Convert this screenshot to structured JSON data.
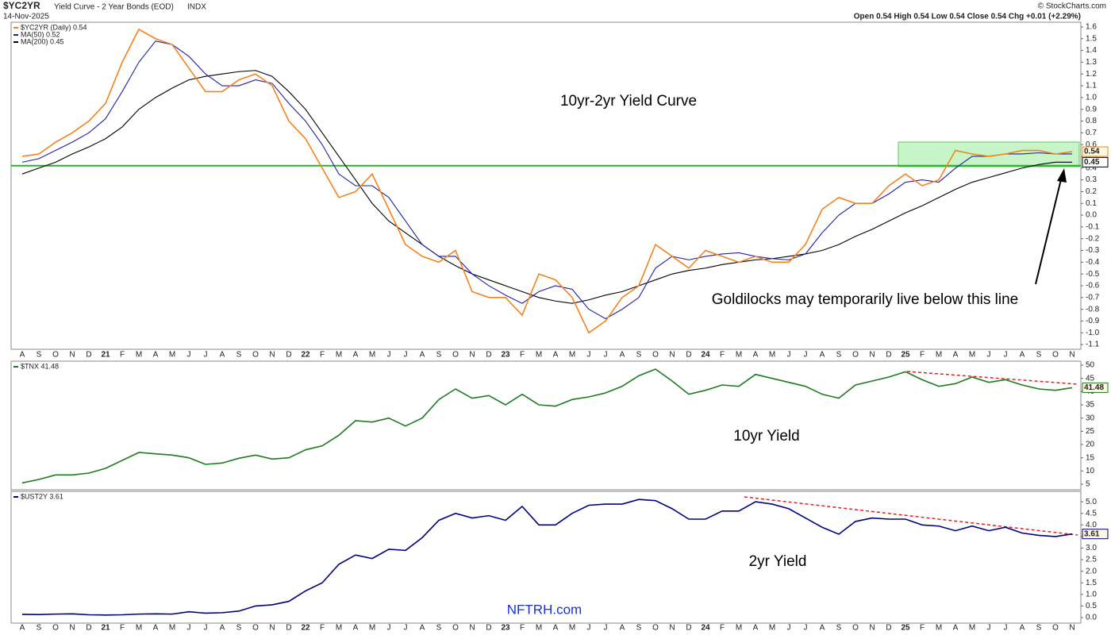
{
  "header": {
    "symbol": "$YC2YR",
    "name": "Yield Curve - 2 Year Bonds (EOD)",
    "exchange": "INDX",
    "date": "14-Nov-2025",
    "quote": "Open 0.54 High 0.54 Low 0.54 Close 0.54 Chg +0.01 (+2.29%)",
    "copyright": "© StockCharts.com",
    "watermark": "NFTRH.com"
  },
  "chart_data": [
    {
      "type": "line",
      "categories": [
        "A",
        "S",
        "O",
        "N",
        "D",
        "21",
        "F",
        "M",
        "A",
        "M",
        "J",
        "J",
        "A",
        "S",
        "O",
        "N",
        "D",
        "22",
        "F",
        "M",
        "A",
        "M",
        "J",
        "J",
        "A",
        "S",
        "O",
        "N",
        "D",
        "23",
        "F",
        "M",
        "A",
        "M",
        "J",
        "J",
        "A",
        "S",
        "O",
        "N",
        "D",
        "24",
        "F",
        "M",
        "A",
        "M",
        "J",
        "J",
        "A",
        "S",
        "O",
        "N",
        "D",
        "25",
        "F",
        "M",
        "A",
        "M",
        "J",
        "J",
        "A",
        "S",
        "O",
        "N"
      ],
      "series": [
        {
          "name": "$YC2YR (Daily) 0.54",
          "color": "#f5821f",
          "values": [
            0.5,
            0.52,
            0.62,
            0.7,
            0.8,
            0.95,
            1.3,
            1.58,
            1.5,
            1.45,
            1.25,
            1.05,
            1.05,
            1.15,
            1.2,
            1.1,
            0.8,
            0.65,
            0.4,
            0.15,
            0.2,
            0.35,
            0.05,
            -0.25,
            -0.35,
            -0.4,
            -0.3,
            -0.65,
            -0.7,
            -0.7,
            -0.85,
            -0.5,
            -0.55,
            -0.7,
            -1.0,
            -0.9,
            -0.7,
            -0.6,
            -0.25,
            -0.35,
            -0.45,
            -0.3,
            -0.35,
            -0.4,
            -0.35,
            -0.4,
            -0.4,
            -0.25,
            0.05,
            0.15,
            0.1,
            0.1,
            0.25,
            0.35,
            0.25,
            0.3,
            0.55,
            0.52,
            0.5,
            0.52,
            0.55,
            0.55,
            0.52,
            0.54
          ]
        },
        {
          "name": "MA(50) 0.52",
          "color": "#1f1fa8",
          "values": [
            0.45,
            0.48,
            0.55,
            0.62,
            0.7,
            0.82,
            1.05,
            1.3,
            1.48,
            1.45,
            1.35,
            1.2,
            1.1,
            1.1,
            1.15,
            1.12,
            0.95,
            0.8,
            0.6,
            0.35,
            0.25,
            0.25,
            0.15,
            -0.05,
            -0.25,
            -0.35,
            -0.35,
            -0.5,
            -0.6,
            -0.68,
            -0.75,
            -0.65,
            -0.6,
            -0.63,
            -0.8,
            -0.88,
            -0.8,
            -0.7,
            -0.45,
            -0.35,
            -0.38,
            -0.35,
            -0.33,
            -0.32,
            -0.35,
            -0.37,
            -0.38,
            -0.33,
            -0.15,
            0.0,
            0.1,
            0.1,
            0.18,
            0.28,
            0.3,
            0.28,
            0.4,
            0.5,
            0.5,
            0.52,
            0.52,
            0.53,
            0.52,
            0.52
          ]
        },
        {
          "name": "MA(200) 0.45",
          "color": "#000000",
          "values": [
            0.35,
            0.4,
            0.45,
            0.52,
            0.58,
            0.65,
            0.75,
            0.9,
            1.0,
            1.08,
            1.15,
            1.18,
            1.2,
            1.22,
            1.23,
            1.18,
            1.05,
            0.9,
            0.7,
            0.5,
            0.3,
            0.1,
            -0.05,
            -0.15,
            -0.25,
            -0.35,
            -0.43,
            -0.5,
            -0.55,
            -0.6,
            -0.65,
            -0.7,
            -0.73,
            -0.75,
            -0.72,
            -0.68,
            -0.65,
            -0.6,
            -0.55,
            -0.5,
            -0.47,
            -0.45,
            -0.42,
            -0.4,
            -0.38,
            -0.37,
            -0.35,
            -0.33,
            -0.3,
            -0.25,
            -0.18,
            -0.12,
            -0.05,
            0.02,
            0.08,
            0.15,
            0.22,
            0.28,
            0.32,
            0.36,
            0.4,
            0.43,
            0.45,
            0.45
          ]
        }
      ],
      "ylim": [
        -1.14,
        1.64
      ],
      "yticks": [
        1.6,
        1.5,
        1.4,
        1.3,
        1.2,
        1.1,
        {
          "value": 1,
          "label": "1.0"
        },
        0.9,
        0.8,
        0.7,
        0.6,
        0.5,
        0.4,
        0.3,
        0.2,
        0.1,
        {
          "value": 0,
          "label": "0.0"
        },
        -0.1,
        -0.2,
        -0.3,
        -0.4,
        -0.5,
        -0.6,
        -0.7,
        -0.8,
        -0.9,
        {
          "value": -1,
          "label": "-1.0"
        },
        -1.1
      ],
      "reference_line": {
        "value": 0.42,
        "color": "#2fae2f"
      },
      "annotations": [
        "10yr-2yr Yield Curve",
        "Goldilocks may temporarily live below this line"
      ]
    },
    {
      "type": "line",
      "series": [
        {
          "name": "$TNX 41.48",
          "color": "#1e7b1e",
          "values": [
            5.5,
            6.8,
            8.5,
            8.5,
            9.2,
            11,
            14,
            17,
            16.5,
            16,
            15,
            12.5,
            13,
            14.8,
            16,
            14.5,
            15,
            18,
            19.5,
            23.5,
            29,
            28.5,
            30,
            27,
            30,
            37,
            41,
            37.5,
            38.5,
            35,
            39,
            35,
            34.5,
            37,
            38,
            39.5,
            42,
            46,
            48.5,
            44,
            39,
            40.5,
            42.5,
            42,
            46.5,
            45,
            43.5,
            42,
            39,
            37.5,
            42.5,
            44,
            45.5,
            47.5,
            44.5,
            42,
            43,
            45.5,
            43.5,
            44.5,
            42.5,
            41,
            40.5,
            41.48
          ]
        }
      ],
      "ylim": [
        2.9,
        51.5
      ],
      "yticks": [
        50,
        45,
        40,
        35,
        30,
        25,
        20,
        15,
        10,
        5
      ],
      "annotations": [
        "10yr Yield"
      ]
    },
    {
      "type": "line",
      "series": [
        {
          "name": "$UST2Y 3.61",
          "color": "#00007f",
          "values": [
            0.14,
            0.13,
            0.15,
            0.16,
            0.12,
            0.11,
            0.12,
            0.15,
            0.16,
            0.15,
            0.25,
            0.19,
            0.21,
            0.28,
            0.5,
            0.55,
            0.7,
            1.15,
            1.5,
            2.3,
            2.7,
            2.55,
            2.95,
            2.9,
            3.45,
            4.2,
            4.5,
            4.3,
            4.4,
            4.2,
            4.8,
            4.0,
            4.0,
            4.5,
            4.85,
            4.9,
            4.9,
            5.1,
            5.05,
            4.7,
            4.25,
            4.25,
            4.6,
            4.6,
            5.0,
            4.9,
            4.7,
            4.3,
            3.9,
            3.6,
            4.15,
            4.3,
            4.25,
            4.25,
            4.0,
            3.95,
            3.75,
            3.95,
            3.75,
            3.9,
            3.65,
            3.55,
            3.5,
            3.61
          ]
        }
      ],
      "ylim": [
        -0.24,
        5.45
      ],
      "yticks": [
        {
          "value": 5,
          "label": "5.0"
        },
        4.5,
        {
          "value": 4,
          "label": "4.0"
        },
        3.5,
        {
          "value": 3,
          "label": "3.0"
        },
        2.5,
        {
          "value": 2,
          "label": "2.0"
        },
        1.5,
        {
          "value": 1,
          "label": "1.0"
        },
        0.5,
        {
          "value": 0,
          "label": "0.0"
        }
      ],
      "annotations": [
        "2yr Yield"
      ]
    }
  ]
}
